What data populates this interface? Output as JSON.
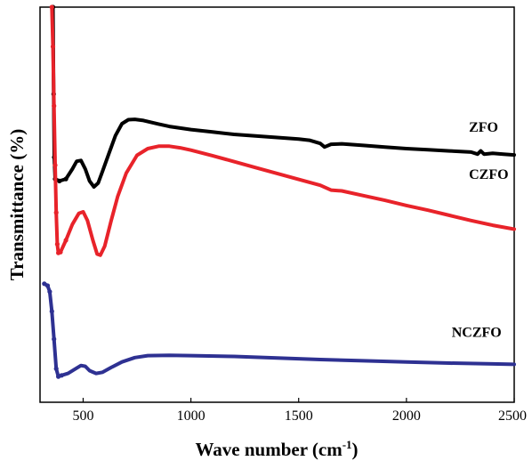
{
  "chart_data": {
    "type": "line",
    "title": "",
    "xlabel": "Wave number (cm",
    "xlabel_sup": "-1",
    "xlabel_suffix": ")",
    "ylabel": "Transmittance (%)",
    "xlim": [
      300,
      2500
    ],
    "ylim": [
      0,
      100
    ],
    "x_ticks": [
      500,
      1000,
      1500,
      2000,
      2500
    ],
    "y_ticks_shown": false,
    "grid": false,
    "legend": "inline labels at right",
    "series": [
      {
        "name": "ZFO",
        "color": "#000000",
        "points": [
          [
            360,
            100
          ],
          [
            363,
            78
          ],
          [
            366,
            62
          ],
          [
            370,
            56.5
          ],
          [
            390,
            56
          ],
          [
            420,
            56.5
          ],
          [
            450,
            59
          ],
          [
            470,
            61
          ],
          [
            490,
            61.2
          ],
          [
            510,
            59
          ],
          [
            530,
            56
          ],
          [
            550,
            54.5
          ],
          [
            570,
            55.5
          ],
          [
            590,
            58.5
          ],
          [
            620,
            63
          ],
          [
            650,
            67.5
          ],
          [
            680,
            70.5
          ],
          [
            710,
            71.5
          ],
          [
            740,
            71.6
          ],
          [
            780,
            71.3
          ],
          [
            850,
            70.4
          ],
          [
            900,
            69.8
          ],
          [
            1000,
            69
          ],
          [
            1100,
            68.4
          ],
          [
            1200,
            67.8
          ],
          [
            1300,
            67.4
          ],
          [
            1400,
            67
          ],
          [
            1500,
            66.6
          ],
          [
            1550,
            66.3
          ],
          [
            1600,
            65.5
          ],
          [
            1620,
            64.6
          ],
          [
            1650,
            65.3
          ],
          [
            1700,
            65.4
          ],
          [
            1800,
            65
          ],
          [
            1900,
            64.6
          ],
          [
            2000,
            64.2
          ],
          [
            2100,
            63.9
          ],
          [
            2200,
            63.6
          ],
          [
            2300,
            63.3
          ],
          [
            2330,
            62.8
          ],
          [
            2345,
            63.6
          ],
          [
            2360,
            62.8
          ],
          [
            2400,
            63
          ],
          [
            2450,
            62.8
          ],
          [
            2500,
            62.6
          ]
        ]
      },
      {
        "name": "CZFO",
        "color": "#e8232a",
        "points": [
          [
            355,
            100
          ],
          [
            360,
            90
          ],
          [
            365,
            75
          ],
          [
            370,
            60
          ],
          [
            375,
            48
          ],
          [
            380,
            40
          ],
          [
            385,
            37.8
          ],
          [
            395,
            38
          ],
          [
            420,
            41
          ],
          [
            450,
            45
          ],
          [
            480,
            47.8
          ],
          [
            500,
            48.2
          ],
          [
            520,
            46
          ],
          [
            545,
            41
          ],
          [
            565,
            37.5
          ],
          [
            580,
            37.2
          ],
          [
            600,
            39.5
          ],
          [
            630,
            46
          ],
          [
            660,
            52
          ],
          [
            700,
            58
          ],
          [
            750,
            62.5
          ],
          [
            800,
            64.2
          ],
          [
            850,
            64.8
          ],
          [
            900,
            64.8
          ],
          [
            950,
            64.4
          ],
          [
            1000,
            63.8
          ],
          [
            1100,
            62.4
          ],
          [
            1200,
            60.9
          ],
          [
            1300,
            59.4
          ],
          [
            1400,
            57.9
          ],
          [
            1500,
            56.4
          ],
          [
            1600,
            54.9
          ],
          [
            1650,
            53.7
          ],
          [
            1700,
            53.5
          ],
          [
            1800,
            52.3
          ],
          [
            1900,
            51.1
          ],
          [
            2000,
            49.8
          ],
          [
            2100,
            48.6
          ],
          [
            2200,
            47.3
          ],
          [
            2300,
            46
          ],
          [
            2400,
            44.8
          ],
          [
            2500,
            43.8
          ]
        ]
      },
      {
        "name": "NCZFO",
        "color": "#2e3192",
        "points": [
          [
            320,
            30
          ],
          [
            335,
            29.5
          ],
          [
            345,
            28
          ],
          [
            355,
            23
          ],
          [
            365,
            16
          ],
          [
            375,
            8.5
          ],
          [
            385,
            6.5
          ],
          [
            400,
            6.8
          ],
          [
            430,
            7.3
          ],
          [
            460,
            8.3
          ],
          [
            490,
            9.3
          ],
          [
            510,
            9.1
          ],
          [
            530,
            8
          ],
          [
            560,
            7.3
          ],
          [
            590,
            7.6
          ],
          [
            630,
            8.8
          ],
          [
            680,
            10.2
          ],
          [
            740,
            11.3
          ],
          [
            800,
            11.8
          ],
          [
            900,
            11.9
          ],
          [
            1000,
            11.8
          ],
          [
            1200,
            11.6
          ],
          [
            1400,
            11.2
          ],
          [
            1600,
            10.8
          ],
          [
            1800,
            10.5
          ],
          [
            2000,
            10.2
          ],
          [
            2200,
            9.9
          ],
          [
            2400,
            9.7
          ],
          [
            2500,
            9.6
          ]
        ]
      }
    ],
    "series_label_positions": [
      {
        "series": "ZFO",
        "x": 2290,
        "y": 68.5
      },
      {
        "series": "CZFO",
        "x": 2290,
        "y": 56.5
      },
      {
        "series": "NCZFO",
        "x": 2210,
        "y": 16.5
      }
    ]
  }
}
